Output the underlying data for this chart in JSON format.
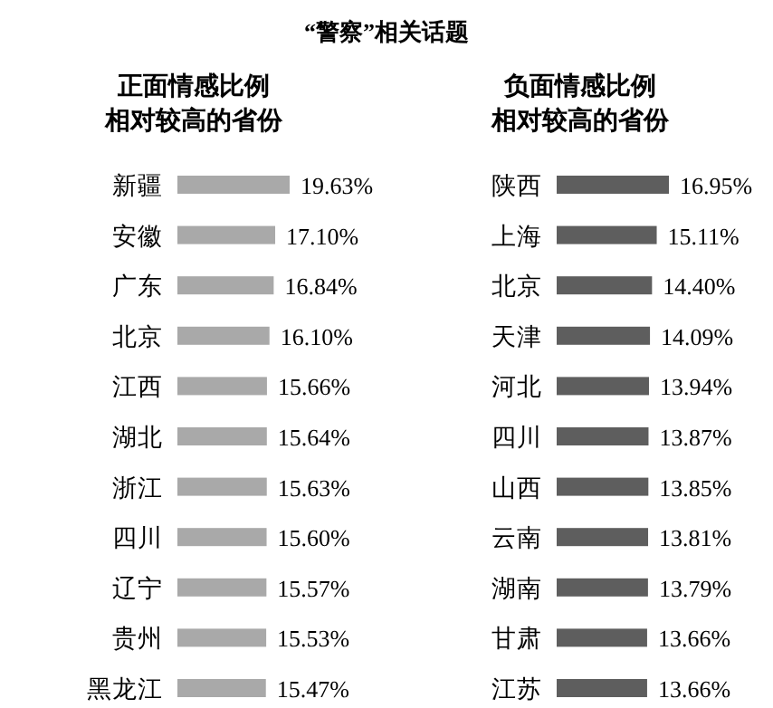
{
  "chart_data": [
    {
      "type": "bar",
      "orientation": "horizontal",
      "annotations": [
        "“警察”相关话题"
      ],
      "subtitle": "正面情感比例相对较高的省份",
      "categories": [
        "新疆",
        "安徽",
        "广东",
        "北京",
        "江西",
        "湖北",
        "浙江",
        "四川",
        "辽宁",
        "贵州",
        "黑龙江"
      ],
      "values": [
        19.63,
        17.1,
        16.84,
        16.1,
        15.66,
        15.64,
        15.63,
        15.6,
        15.57,
        15.53,
        15.47
      ],
      "value_labels": [
        "19.63%",
        "17.10%",
        "16.84%",
        "16.10%",
        "15.66%",
        "15.64%",
        "15.63%",
        "15.60%",
        "15.57%",
        "15.53%",
        "15.47%"
      ],
      "color": "#a9a9a9"
    },
    {
      "type": "bar",
      "orientation": "horizontal",
      "subtitle": "负面情感比例相对较高的省份",
      "categories": [
        "陕西",
        "上海",
        "北京",
        "天津",
        "河北",
        "四川",
        "山西",
        "云南",
        "湖南",
        "甘肃",
        "江苏"
      ],
      "values": [
        16.95,
        15.11,
        14.4,
        14.09,
        13.94,
        13.87,
        13.85,
        13.81,
        13.79,
        13.66,
        13.66
      ],
      "value_labels": [
        "16.95%",
        "15.11%",
        "14.40%",
        "14.09%",
        "13.94%",
        "13.87%",
        "13.85%",
        "13.81%",
        "13.79%",
        "13.66%",
        "13.66%"
      ],
      "color": "#5e5e5e"
    }
  ]
}
